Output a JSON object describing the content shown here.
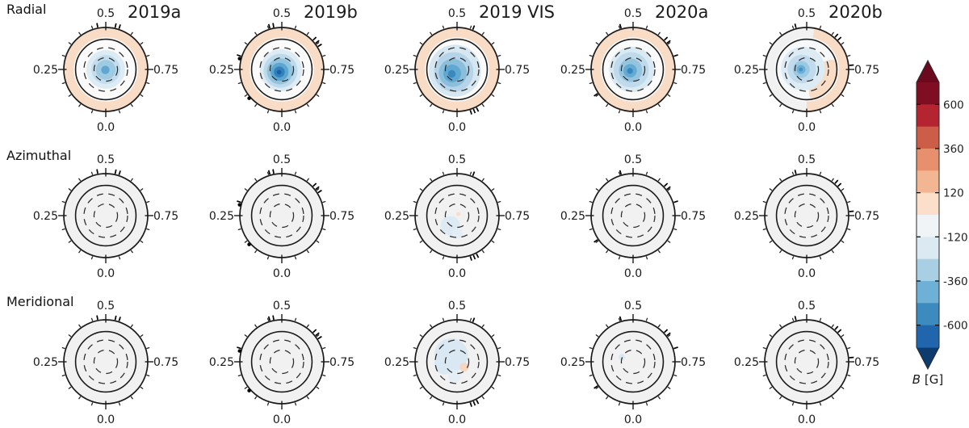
{
  "page": {
    "background": "#ffffff"
  },
  "chart_data": {
    "type": "heatmap",
    "description": "3x5 grid of polar (flattened) stellar magnetic field maps from Zeeman-Doppler imaging; rows are field components, columns are observing epochs; shared discrete diverging colorbar in Gauss.",
    "rows": [
      "Radial",
      "Azimuthal",
      "Meridional"
    ],
    "columns": [
      "2019a",
      "2019b",
      "2019 VIS",
      "2020a",
      "2020b"
    ],
    "phase_labels": {
      "top": "0.5",
      "left": "0.25",
      "right": "0.75",
      "bottom": "0.0"
    },
    "minor_tick_step_phase": 0.05,
    "major_tick_phases": [
      0.0,
      0.25,
      0.5,
      0.75
    ],
    "grid": {
      "outer_solid_r": 1.0,
      "inner_solid_r": 0.72,
      "dashed_r": [
        0.28,
        0.52
      ]
    },
    "colorbar": {
      "label_var": "B",
      "label_unit": " [G]",
      "ticks": [
        600,
        360,
        120,
        -120,
        -360,
        -600
      ],
      "tick_labels": [
        "600",
        "360",
        "120",
        "-120",
        "-360",
        "-600"
      ],
      "boundaries": [
        -720,
        -600,
        -480,
        -360,
        -240,
        -120,
        0,
        120,
        240,
        360,
        480,
        600,
        720
      ],
      "band_colors_top_to_bottom": [
        "#7f0e22",
        "#b52431",
        "#cb5d49",
        "#e6906e",
        "#f3b692",
        "#fbdfca",
        "#f0f4f7",
        "#dbe9f2",
        "#a9cfe4",
        "#6fb0d7",
        "#3c8abe",
        "#2166ac"
      ],
      "over_color": "#6b0a1e",
      "under_color": "#0d3b6e"
    },
    "obs_ticks": {
      "2019a": [
        0.47,
        0.535,
        0.55
      ],
      "2019b": [
        0.455,
        0.47,
        0.63,
        0.645,
        0.66,
        0.3
      ],
      "2019 VIS": [
        0.56,
        0.925,
        0.9375,
        0.95
      ],
      "2020a": [
        0.455,
        0.63,
        0.645,
        0.7,
        0.155
      ],
      "2020b": [
        0.46,
        0.615,
        0.63,
        0.735
      ]
    },
    "obs_dots": {
      "2019a": [],
      "2019b": [
        0.135,
        0.29
      ],
      "2019 VIS": [],
      "2020a": [],
      "2020b": []
    },
    "maps": {
      "Radial": {
        "2019a": {
          "inner": "#fbfbfb",
          "ring": "#f8dcc6",
          "ring_arc": null,
          "blobs": [
            [
              0,
              0,
              0.46,
              "#ddebf4"
            ],
            [
              0,
              0,
              0.345,
              "#c3ddee"
            ],
            [
              0,
              0.01,
              0.235,
              "#9fcbe2"
            ],
            [
              -0.01,
              0.01,
              0.1,
              "#5fa6d1"
            ]
          ]
        },
        "2019b": {
          "inner": "#fbfbfb",
          "ring": "#f8dcc6",
          "ring_arc": null,
          "blobs": [
            [
              -0.02,
              0.02,
              0.5,
              "#dcebf4"
            ],
            [
              -0.03,
              0.03,
              0.405,
              "#bdd9ec"
            ],
            [
              -0.045,
              0.045,
              0.31,
              "#92c3dd"
            ],
            [
              -0.055,
              0.055,
              0.215,
              "#5ca6d1"
            ],
            [
              -0.06,
              0.06,
              0.13,
              "#3181bb"
            ],
            [
              -0.065,
              0.065,
              0.055,
              "#1d60a5"
            ]
          ]
        },
        "2019 VIS": {
          "inner": "#fbfbfb",
          "ring": "#f8dcc6",
          "ring_arc": null,
          "blobs": [
            [
              -0.05,
              0.03,
              0.62,
              "#d6e7f1"
            ],
            [
              -0.08,
              0.06,
              0.47,
              "#b5d4e9"
            ],
            [
              -0.1,
              0.08,
              0.335,
              "#8abedb"
            ],
            [
              -0.115,
              0.095,
              0.21,
              "#5fa8d2"
            ],
            [
              -0.125,
              0.105,
              0.09,
              "#3a88c0"
            ]
          ]
        },
        "2020a": {
          "inner": "#fbfbfb",
          "ring": "#f8dcc6",
          "ring_arc": null,
          "blobs": [
            [
              -0.03,
              0,
              0.54,
              "#daeaf3"
            ],
            [
              -0.045,
              0.01,
              0.42,
              "#bfdaec"
            ],
            [
              -0.06,
              0.02,
              0.28,
              "#95c5de"
            ],
            [
              -0.07,
              0.03,
              0.16,
              "#65aad3"
            ],
            [
              -0.075,
              0.035,
              0.07,
              "#3787c0"
            ]
          ]
        },
        "2020b": {
          "inner": "#f7f8f9",
          "ring": "#f1f1f2",
          "ring_arc": {
            "from": 0.53,
            "to": 1.0,
            "color": "#f8dcc6"
          },
          "blobs": [
            [
              0.58,
              0.1,
              0.33,
              "#f8dcc6"
            ],
            [
              0.38,
              0.52,
              0.33,
              "#f8dcc6"
            ],
            [
              -0.09,
              -0.02,
              0.52,
              "#dcebf4"
            ],
            [
              -0.115,
              -0.01,
              0.34,
              "#c1dbec"
            ],
            [
              -0.13,
              0,
              0.2,
              "#9bc9e1"
            ],
            [
              -0.135,
              0,
              0.105,
              "#6cafd6"
            ],
            [
              -0.14,
              0,
              0.045,
              "#4392c6"
            ]
          ]
        }
      },
      "Azimuthal": {
        "2019a": {
          "inner": "#f1f1f2",
          "ring": null,
          "ring_arc": null,
          "blobs": []
        },
        "2019b": {
          "inner": "#f1f1f2",
          "ring": null,
          "ring_arc": null,
          "blobs": []
        },
        "2019 VIS": {
          "inner": "#f1f1f2",
          "ring": null,
          "ring_arc": null,
          "blobs": [
            [
              -0.16,
              0.24,
              0.23,
              "#dceaf3"
            ],
            [
              0.0,
              0.42,
              0.13,
              "#e3edf5"
            ],
            [
              0.03,
              -0.04,
              0.05,
              "#f9ddc9"
            ]
          ]
        },
        "2020a": {
          "inner": "#f1f1f2",
          "ring": null,
          "ring_arc": null,
          "blobs": []
        },
        "2020b": {
          "inner": "#f1f1f2",
          "ring": null,
          "ring_arc": null,
          "blobs": []
        }
      },
      "Meridional": {
        "2019a": {
          "inner": "#f1f1f2",
          "ring": null,
          "ring_arc": null,
          "blobs": []
        },
        "2019b": {
          "inner": "#f1f1f2",
          "ring": null,
          "ring_arc": null,
          "blobs": []
        },
        "2019 VIS": {
          "inner": "#f1f1f2",
          "ring": null,
          "ring_arc": null,
          "blobs": [
            [
              -0.14,
              -0.16,
              0.4,
              "#d9e8f2"
            ],
            [
              -0.3,
              0.06,
              0.24,
              "#d9e8f2"
            ],
            [
              -0.06,
              0.34,
              0.15,
              "#e4eef5"
            ],
            [
              0.17,
              0.13,
              0.105,
              "#f7d6c1"
            ]
          ]
        },
        "2020a": {
          "inner": "#f1f1f2",
          "ring": null,
          "ring_arc": null,
          "blobs": [
            [
              -0.27,
              -0.11,
              0.08,
              "#d9e9f3"
            ]
          ]
        },
        "2020b": {
          "inner": "#f1f1f2",
          "ring": null,
          "ring_arc": null,
          "blobs": []
        }
      }
    }
  }
}
